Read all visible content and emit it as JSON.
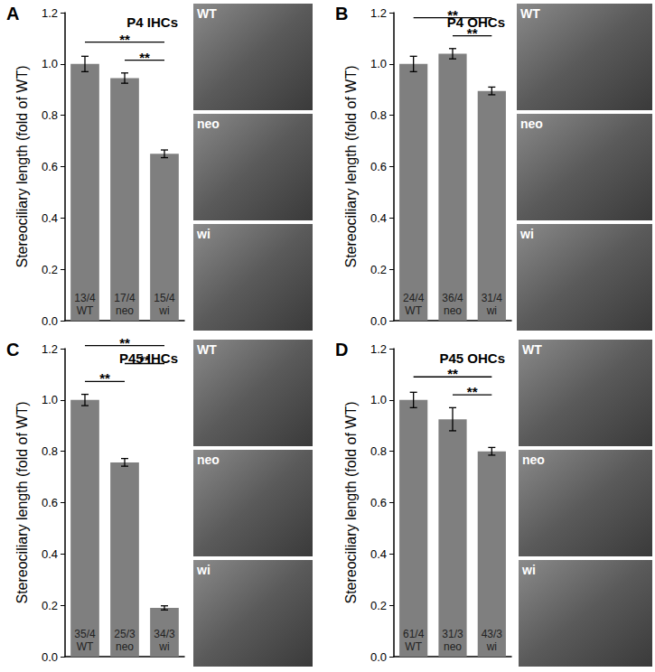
{
  "chart_data": [
    {
      "type": "bar",
      "panel": "A",
      "title": "P4 IHCs",
      "categories": [
        "WT",
        "neo",
        "wi"
      ],
      "values": [
        1.0,
        0.945,
        0.65
      ],
      "errors": [
        0.03,
        0.02,
        0.015
      ],
      "n": [
        "13/4",
        "17/4",
        "15/4"
      ],
      "significance": [
        {
          "pair": [
            "neo",
            "wi"
          ],
          "label": "**"
        },
        {
          "pair": [
            "WT",
            "wi"
          ],
          "label": "**"
        }
      ],
      "images": [
        "WT",
        "neo",
        "wi"
      ],
      "ylabel": "Stereociliary length (fold of WT)",
      "color": "#7f7f7f",
      "ylim": [
        0,
        1.2
      ],
      "yticks": [
        {
          "value": 0,
          "label": "0.0"
        },
        {
          "value": 0.2,
          "label": "0.2"
        },
        {
          "value": 0.4,
          "label": "0.4"
        },
        {
          "value": 0.6,
          "label": "0.6"
        },
        {
          "value": 0.8,
          "label": "0.8"
        },
        {
          "value": 1.0,
          "label": "1.0"
        },
        {
          "value": 1.2,
          "label": "1.2"
        }
      ],
      "grid": false,
      "tick_labels": "y",
      "data_labels": false
    },
    {
      "type": "bar",
      "panel": "B",
      "title": "P4 OHCs",
      "categories": [
        "WT",
        "neo",
        "wi"
      ],
      "values": [
        1.0,
        1.04,
        0.895
      ],
      "errors": [
        0.03,
        0.02,
        0.015
      ],
      "n": [
        "24/4",
        "36/4",
        "31/4"
      ],
      "significance": [
        {
          "pair": [
            "neo",
            "wi"
          ],
          "label": "**"
        },
        {
          "pair": [
            "WT",
            "wi"
          ],
          "label": "**"
        }
      ],
      "images": [
        "WT",
        "neo",
        "wi"
      ],
      "ylabel": "Stereociliary length (fold of WT)",
      "color": "#7f7f7f",
      "ylim": [
        0,
        1.2
      ],
      "yticks": [
        {
          "value": 0,
          "label": "0.0"
        },
        {
          "value": 0.2,
          "label": "0.2"
        },
        {
          "value": 0.4,
          "label": "0.4"
        },
        {
          "value": 0.6,
          "label": "0.6"
        },
        {
          "value": 0.8,
          "label": "0.8"
        },
        {
          "value": 1.0,
          "label": "1.0"
        },
        {
          "value": 1.2,
          "label": "1.2"
        }
      ],
      "grid": false,
      "tick_labels": "y",
      "data_labels": false
    },
    {
      "type": "bar",
      "panel": "C",
      "title": "P45 IHCs",
      "categories": [
        "WT",
        "neo",
        "wi"
      ],
      "values": [
        1.0,
        0.757,
        0.19
      ],
      "errors": [
        0.022,
        0.015,
        0.008
      ],
      "n": [
        "35/4",
        "25/3",
        "34/3"
      ],
      "significance": [
        {
          "pair": [
            "WT",
            "neo"
          ],
          "label": "**"
        },
        {
          "pair": [
            "neo",
            "wi"
          ],
          "label": "**"
        },
        {
          "pair": [
            "WT",
            "wi"
          ],
          "label": "**"
        }
      ],
      "images": [
        "WT",
        "neo",
        "wi"
      ],
      "ylabel": "Stereociliary length (fold of WT)",
      "color": "#7f7f7f",
      "ylim": [
        0,
        1.2
      ],
      "yticks": [
        {
          "value": 0,
          "label": "0.0"
        },
        {
          "value": 0.2,
          "label": "0.2"
        },
        {
          "value": 0.4,
          "label": "0.4"
        },
        {
          "value": 0.6,
          "label": "0.6"
        },
        {
          "value": 0.8,
          "label": "0.8"
        },
        {
          "value": 1.0,
          "label": "1.0"
        },
        {
          "value": 1.2,
          "label": "1.2"
        }
      ],
      "grid": false,
      "tick_labels": "y",
      "data_labels": false
    },
    {
      "type": "bar",
      "panel": "D",
      "title": "P45 OHCs",
      "categories": [
        "WT",
        "neo",
        "wi"
      ],
      "values": [
        1.0,
        0.925,
        0.8
      ],
      "errors": [
        0.03,
        0.045,
        0.015
      ],
      "n": [
        "61/4",
        "31/3",
        "43/3"
      ],
      "significance": [
        {
          "pair": [
            "neo",
            "wi"
          ],
          "label": "**"
        },
        {
          "pair": [
            "WT",
            "wi"
          ],
          "label": "**"
        }
      ],
      "images": [
        "WT",
        "neo",
        "wi"
      ],
      "ylabel": "Stereociliary length (fold of WT)",
      "color": "#7f7f7f",
      "ylim": [
        0,
        1.2
      ],
      "yticks": [
        {
          "value": 0,
          "label": "0.0"
        },
        {
          "value": 0.2,
          "label": "0.2"
        },
        {
          "value": 0.4,
          "label": "0.4"
        },
        {
          "value": 0.6,
          "label": "0.6"
        },
        {
          "value": 0.8,
          "label": "0.8"
        },
        {
          "value": 1.0,
          "label": "1.0"
        },
        {
          "value": 1.2,
          "label": "1.2"
        }
      ],
      "grid": false,
      "tick_labels": "y",
      "data_labels": false
    }
  ]
}
